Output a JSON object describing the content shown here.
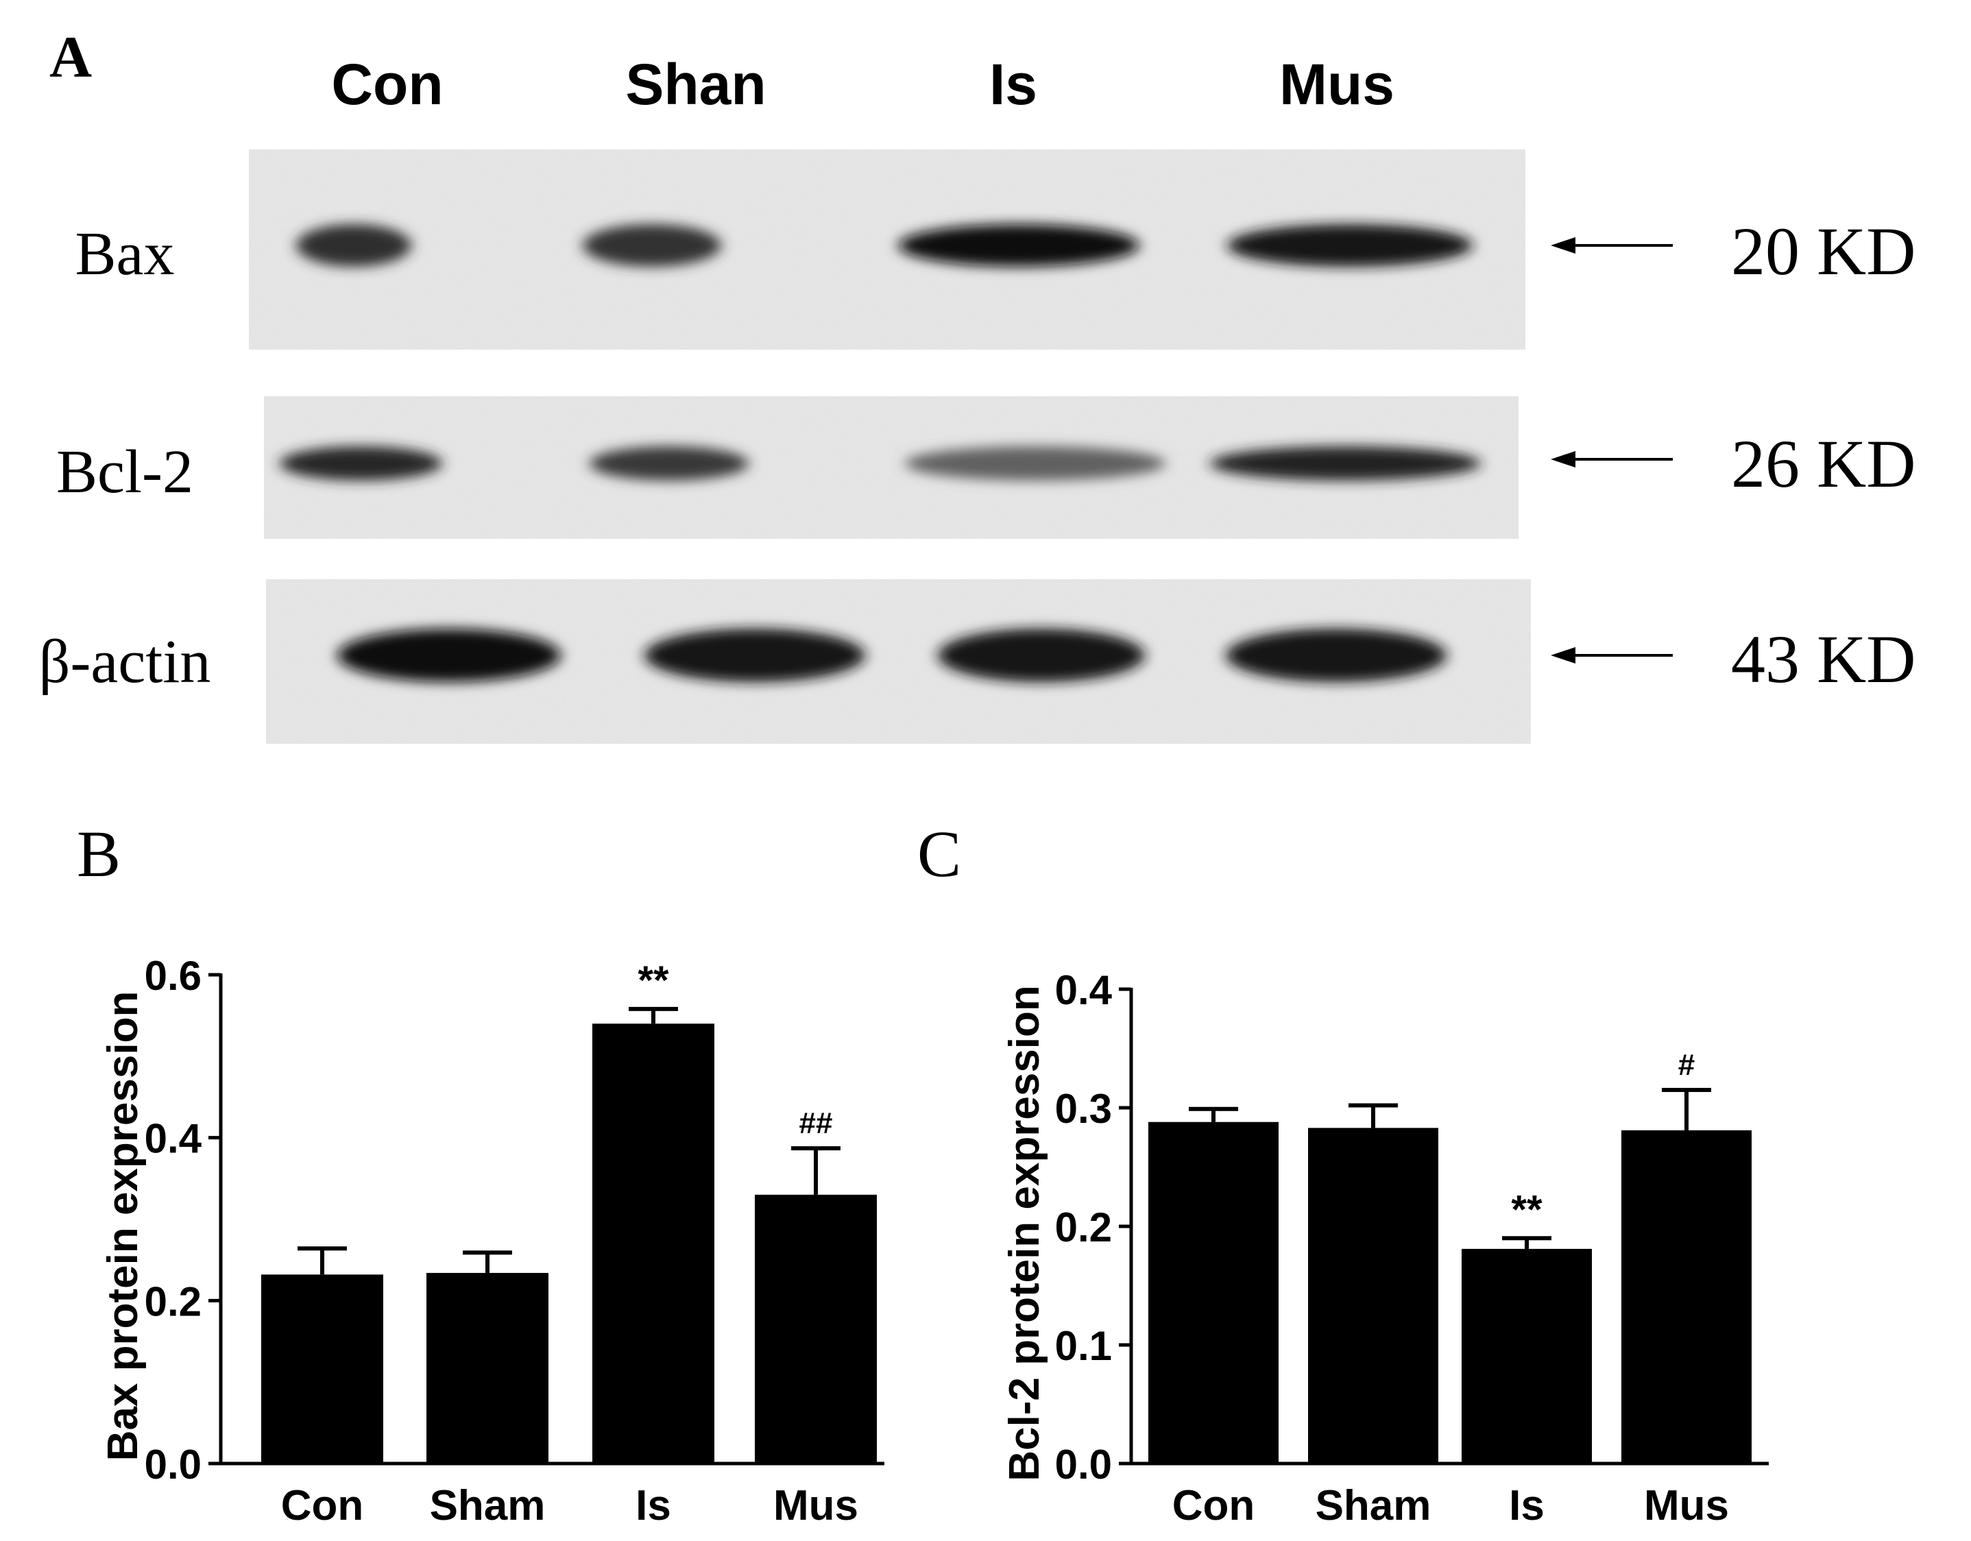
{
  "panel_labels": {
    "a": "A",
    "b": "B",
    "c": "C"
  },
  "blot": {
    "lanes": [
      "Con",
      "Shan",
      "Is",
      "Mus"
    ],
    "rows": [
      {
        "name": "Bax",
        "kd": "20 KD",
        "intensity": [
          0.82,
          0.8,
          0.95,
          0.9
        ]
      },
      {
        "name": "Bcl-2",
        "kd": "26 KD",
        "intensity": [
          0.85,
          0.78,
          0.62,
          0.86
        ]
      },
      {
        "name": "β-actin",
        "kd": "43 KD",
        "intensity": [
          0.95,
          0.93,
          0.93,
          0.93
        ]
      }
    ]
  },
  "chart_data": [
    {
      "type": "bar",
      "panel": "B",
      "categories": [
        "Con",
        "Sham",
        "Is",
        "Mus"
      ],
      "values": [
        0.232,
        0.234,
        0.54,
        0.33
      ],
      "errors": [
        0.032,
        0.025,
        0.018,
        0.057
      ],
      "annotations": [
        "",
        "",
        "**",
        "##"
      ],
      "ylabel": "Bax protein expression",
      "ylim": [
        0,
        0.6
      ],
      "yticks": [
        0.0,
        0.2,
        0.4,
        0.6
      ],
      "ytick_labels": [
        "0.0",
        "0.2",
        "0.4",
        "0.6"
      ],
      "bar_color": "#000000"
    },
    {
      "type": "bar",
      "panel": "C",
      "categories": [
        "Con",
        "Sham",
        "Is",
        "Mus"
      ],
      "values": [
        0.288,
        0.283,
        0.181,
        0.281
      ],
      "errors": [
        0.011,
        0.019,
        0.009,
        0.034
      ],
      "annotations": [
        "",
        "",
        "**",
        "#"
      ],
      "ylabel": "Bcl-2 protein expression",
      "ylim": [
        0,
        0.4
      ],
      "yticks": [
        0.0,
        0.1,
        0.2,
        0.3,
        0.4
      ],
      "ytick_labels": [
        "0.0",
        "0.1",
        "0.2",
        "0.3",
        "0.4"
      ],
      "bar_color": "#000000"
    }
  ]
}
